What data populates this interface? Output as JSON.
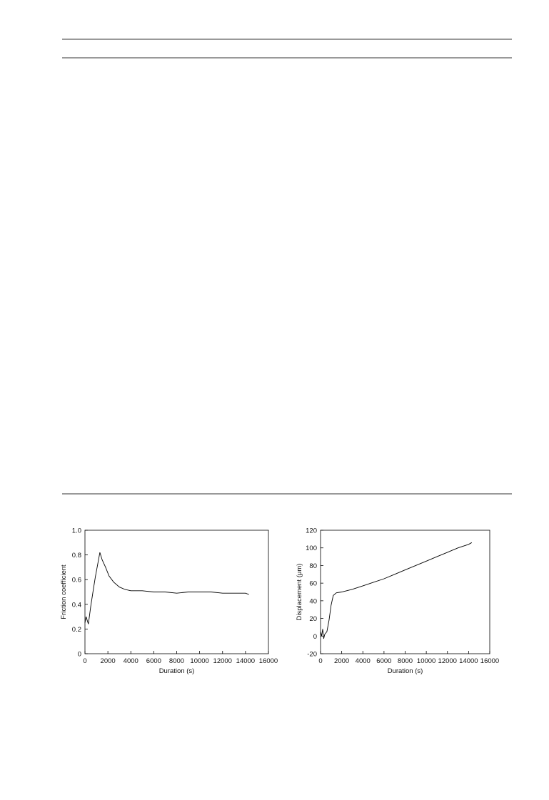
{
  "chart_data": [
    {
      "type": "line",
      "xlabel": "Duration (s)",
      "ylabel": "Friction coefficient",
      "color": "#000000",
      "x": [
        0,
        100,
        300,
        500,
        700,
        900,
        1100,
        1300,
        1500,
        1800,
        2100,
        2500,
        3000,
        3500,
        4000,
        5000,
        6000,
        7000,
        8000,
        9000,
        10000,
        11000,
        12000,
        13000,
        14000,
        14300
      ],
      "values": [
        0.25,
        0.3,
        0.24,
        0.38,
        0.5,
        0.62,
        0.72,
        0.82,
        0.76,
        0.7,
        0.63,
        0.58,
        0.54,
        0.52,
        0.51,
        0.51,
        0.5,
        0.5,
        0.49,
        0.5,
        0.5,
        0.5,
        0.49,
        0.49,
        0.49,
        0.48
      ],
      "xlim": [
        0,
        16000
      ],
      "xticks": [
        0,
        2000,
        4000,
        6000,
        8000,
        10000,
        12000,
        14000,
        16000
      ],
      "ylim": [
        0,
        1
      ],
      "yticks": [
        0,
        0.2,
        0.4,
        0.6,
        0.8,
        {
          "value": 1,
          "label": "1.0"
        }
      ]
    },
    {
      "type": "line",
      "xlabel": "Duration (s)",
      "ylabel": "Displacement (μm)",
      "color": "#000000",
      "x": [
        0,
        100,
        200,
        300,
        400,
        600,
        800,
        1000,
        1200,
        1500,
        2000,
        3000,
        4000,
        5000,
        6000,
        7000,
        8000,
        9000,
        10000,
        11000,
        12000,
        13000,
        14000,
        14300
      ],
      "values": [
        5,
        0,
        8,
        -3,
        2,
        5,
        18,
        35,
        46,
        49,
        50,
        53,
        57,
        61,
        65,
        70,
        75,
        80,
        85,
        90,
        95,
        100,
        104,
        106
      ],
      "xlim": [
        0,
        16000
      ],
      "xticks": [
        0,
        2000,
        4000,
        6000,
        8000,
        10000,
        12000,
        14000,
        16000
      ],
      "ylim": [
        -20,
        120
      ],
      "yticks": [
        -20,
        0,
        20,
        40,
        60,
        80,
        100,
        120
      ]
    }
  ]
}
